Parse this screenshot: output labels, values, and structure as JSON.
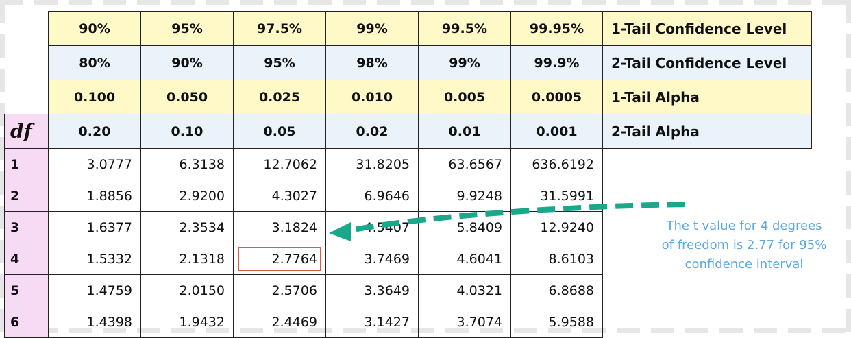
{
  "table": {
    "df_symbol": "df",
    "header_rows": [
      {
        "values": [
          "90%",
          "95%",
          "97.5%",
          "99%",
          "99.5%",
          "99.95%"
        ],
        "label_prefix": "1",
        "label_text": "-Tail Confidence Level"
      },
      {
        "values": [
          "80%",
          "90%",
          "95%",
          "98%",
          "99%",
          "99.9%"
        ],
        "label_prefix": "2",
        "label_text": "-Tail Confidence Level"
      },
      {
        "values": [
          "0.100",
          "0.050",
          "0.025",
          "0.010",
          "0.005",
          "0.0005"
        ],
        "label_prefix": "1",
        "label_text": "-Tail Alpha"
      },
      {
        "values": [
          "0.20",
          "0.10",
          "0.05",
          "0.02",
          "0.01",
          "0.001"
        ],
        "label_prefix": "2",
        "label_text": "-Tail Alpha"
      }
    ],
    "rows": [
      {
        "df": "1",
        "values": [
          "3.0777",
          "6.3138",
          "12.7062",
          "31.8205",
          "63.6567",
          "636.6192"
        ]
      },
      {
        "df": "2",
        "values": [
          "1.8856",
          "2.9200",
          "4.3027",
          "6.9646",
          "9.9248",
          "31.5991"
        ]
      },
      {
        "df": "3",
        "values": [
          "1.6377",
          "2.3534",
          "3.1824",
          "4.5407",
          "5.8409",
          "12.9240"
        ]
      },
      {
        "df": "4",
        "values": [
          "1.5332",
          "2.1318",
          "2.7764",
          "3.7469",
          "4.6041",
          "8.6103"
        ]
      },
      {
        "df": "5",
        "values": [
          "1.4759",
          "2.0150",
          "2.5706",
          "3.3649",
          "4.0321",
          "6.8688"
        ]
      },
      {
        "df": "6",
        "values": [
          "1.4398",
          "1.9432",
          "2.4469",
          "3.1427",
          "3.7074",
          "5.9588"
        ]
      }
    ]
  },
  "annotation": {
    "line1": "The t value for 4 degrees",
    "line2": "of freedom is 2.77 for 95%",
    "line3": "confidence interval"
  },
  "colors": {
    "header_yellow": "#fff9c8",
    "header_blue": "#e9f3f9",
    "df_column": "#f7dbf4",
    "highlight_box": "#e05a4a",
    "arrow": "#1aa88a",
    "annotation_text": "#5aa9e6"
  }
}
